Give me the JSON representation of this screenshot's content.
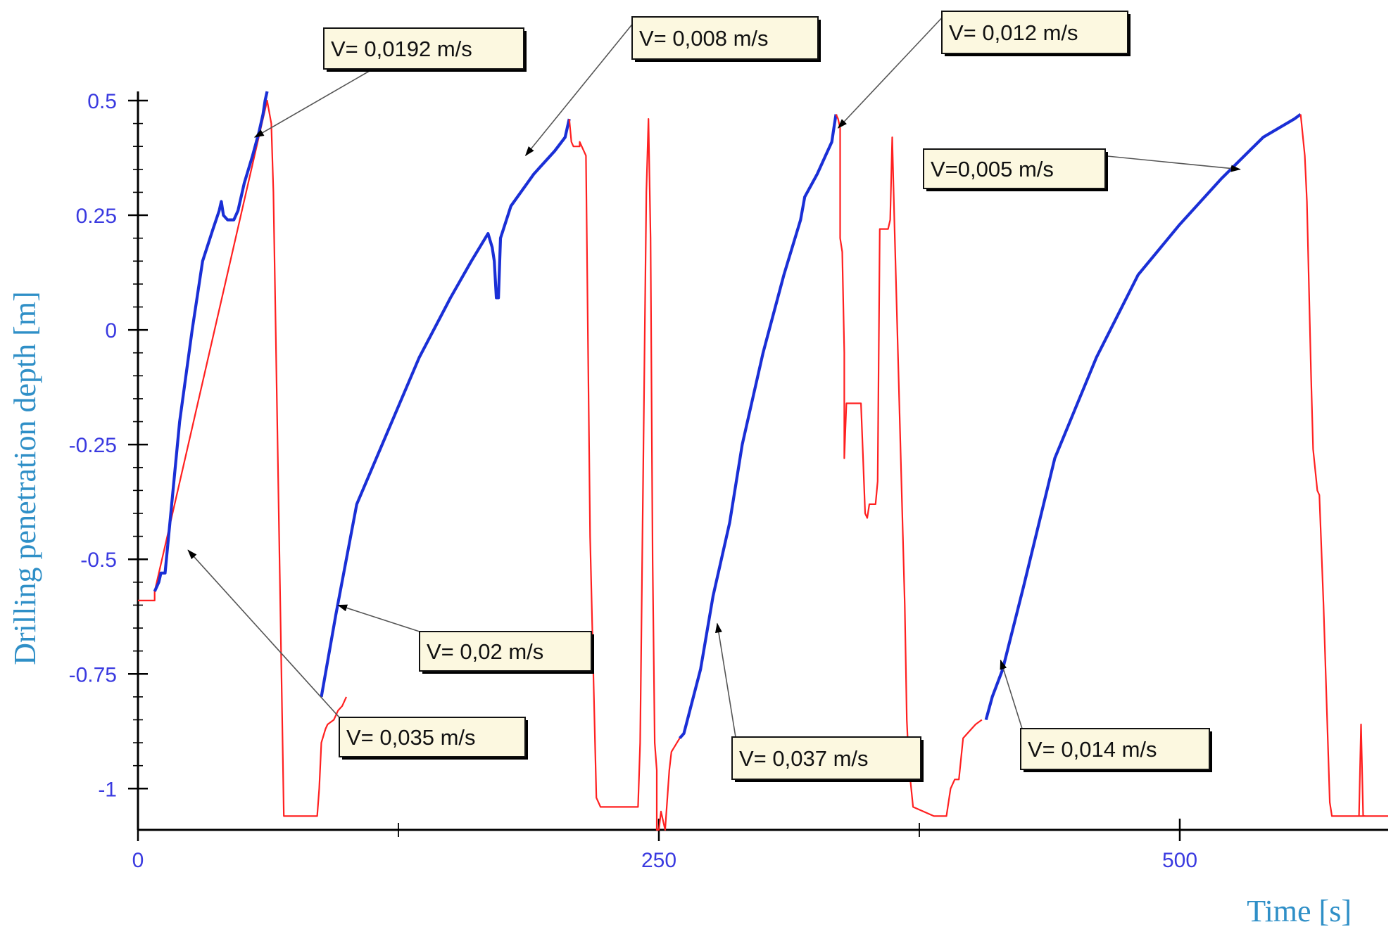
{
  "chart_data": {
    "type": "line",
    "xlabel": "Time [s]",
    "ylabel": "Drilling penetration depth [m]",
    "xlim": [
      0,
      600
    ],
    "ylim": [
      -1.09,
      0.5
    ],
    "x_ticks": [
      0,
      250,
      500
    ],
    "y_ticks": [
      0.5,
      0.25,
      0,
      -0.25,
      -0.5,
      -0.75,
      -1
    ],
    "y_tick_labels": [
      "0.5",
      "0.25",
      "0",
      "-0.25",
      "-0.5",
      "-0.75",
      "-1"
    ],
    "x_tick_labels": [
      "0",
      "250",
      "500"
    ],
    "colors": {
      "drilling": "#1a2fd6",
      "retract": "#ff2020",
      "ticks": "#3a3ae0",
      "titles": "#2f8fc7"
    },
    "series": [
      {
        "color": "#ff2020",
        "x": [
          0,
          8,
          8,
          62,
          64,
          65,
          70,
          81,
          86,
          87,
          88,
          90,
          91,
          94,
          96,
          98,
          100
        ],
        "y": [
          -0.59,
          -0.59,
          -0.57,
          0.5,
          0.45,
          0.3,
          -1.06,
          -1.06,
          -1.06,
          -1.0,
          -0.9,
          -0.87,
          -0.86,
          -0.85,
          -0.83,
          -0.82,
          -0.8
        ]
      },
      {
        "color": "#1a2fd6",
        "x": [
          8,
          10,
          11,
          13,
          20,
          26,
          31,
          36,
          39,
          40,
          41,
          43,
          44,
          45,
          46,
          48,
          51,
          55,
          58,
          60,
          61,
          62
        ],
        "y": [
          -0.57,
          -0.55,
          -0.53,
          -0.53,
          -0.2,
          0.0,
          0.15,
          0.22,
          0.26,
          0.28,
          0.25,
          0.24,
          0.24,
          0.24,
          0.24,
          0.26,
          0.32,
          0.38,
          0.43,
          0.47,
          0.5,
          0.52
        ]
      },
      {
        "color": "#1a2fd6",
        "x": [
          88,
          95,
          105,
          120,
          135,
          150,
          160,
          168,
          170,
          171,
          172,
          173,
          174,
          179,
          190,
          200,
          205,
          207
        ],
        "y": [
          -0.8,
          -0.62,
          -0.38,
          -0.22,
          -0.06,
          0.07,
          0.15,
          0.21,
          0.18,
          0.15,
          0.07,
          0.07,
          0.2,
          0.27,
          0.34,
          0.39,
          0.42,
          0.46
        ]
      },
      {
        "color": "#ff2020",
        "x": [
          207,
          208,
          209,
          212,
          212,
          215,
          217,
          219,
          220,
          222,
          236,
          240,
          241,
          242,
          244,
          245,
          246,
          247,
          248,
          249,
          249,
          250,
          251,
          253,
          255,
          256,
          260
        ],
        "y": [
          0.46,
          0.41,
          0.4,
          0.4,
          0.41,
          0.38,
          -0.45,
          -0.83,
          -1.02,
          -1.04,
          -1.04,
          -1.04,
          -0.9,
          -0.5,
          0.3,
          0.46,
          0.2,
          -0.5,
          -0.9,
          -0.96,
          -1.09,
          -1.09,
          -1.05,
          -1.09,
          -0.96,
          -0.92,
          -0.89
        ]
      },
      {
        "color": "#1a2fd6",
        "x": [
          260,
          262,
          270,
          276,
          280,
          284,
          290,
          300,
          310,
          318,
          320,
          326,
          330,
          333,
          334,
          335
        ],
        "y": [
          -0.89,
          -0.88,
          -0.74,
          -0.58,
          -0.5,
          -0.42,
          -0.25,
          -0.05,
          0.12,
          0.24,
          0.29,
          0.34,
          0.38,
          0.41,
          0.44,
          0.47
        ]
      },
      {
        "color": "#ff2020",
        "x": [
          335,
          336,
          337,
          337,
          338,
          339,
          339,
          340,
          341,
          341,
          342,
          345,
          347,
          348,
          349,
          350,
          351,
          354,
          355,
          356,
          357,
          358,
          360,
          361,
          362,
          363,
          368,
          369,
          370,
          372,
          382,
          385,
          386,
          388,
          390,
          392,
          394,
          396,
          400,
          402,
          405
        ],
        "y": [
          0.47,
          0.46,
          0.44,
          0.2,
          0.17,
          -0.05,
          -0.28,
          -0.16,
          -0.16,
          -0.16,
          -0.16,
          -0.16,
          -0.16,
          -0.28,
          -0.4,
          -0.41,
          -0.38,
          -0.38,
          -0.33,
          0.22,
          0.22,
          0.22,
          0.22,
          0.24,
          0.42,
          0.24,
          -0.6,
          -0.85,
          -0.95,
          -1.04,
          -1.06,
          -1.06,
          -1.06,
          -1.06,
          -1.0,
          -0.98,
          -0.98,
          -0.89,
          -0.87,
          -0.86,
          -0.85
        ]
      },
      {
        "color": "#1a2fd6",
        "x": [
          407,
          410,
          415,
          425,
          440,
          460,
          480,
          500,
          520,
          540,
          555,
          558
        ],
        "y": [
          -0.85,
          -0.8,
          -0.74,
          -0.56,
          -0.28,
          -0.06,
          0.12,
          0.23,
          0.33,
          0.42,
          0.46,
          0.47
        ]
      },
      {
        "color": "#ff2020",
        "x": [
          558,
          560,
          561,
          563,
          564,
          566,
          566,
          567,
          569,
          572,
          573,
          577,
          578,
          579,
          580,
          581,
          583,
          600
        ],
        "y": [
          0.47,
          0.38,
          0.28,
          -0.1,
          -0.26,
          -0.35,
          -0.35,
          -0.36,
          -0.6,
          -1.03,
          -1.06,
          -1.06,
          -1.06,
          -1.06,
          -1.06,
          -1.06,
          -1.06,
          -1.06
        ]
      },
      {
        "color": "#ff2020",
        "x": [
          586,
          587,
          588,
          589
        ],
        "y": [
          -1.06,
          -0.86,
          -1.06,
          -1.06
        ]
      }
    ],
    "annotations": [
      {
        "text": "V= 0,0192 m/s",
        "x": 56,
        "y": 0.42
      },
      {
        "text": "V= 0,008 m/s",
        "x": 186,
        "y": 0.38
      },
      {
        "text": "V= 0,012 m/s",
        "x": 336,
        "y": 0.44
      },
      {
        "text": "V=0,005 m/s",
        "x": 529,
        "y": 0.35
      },
      {
        "text": "V= 0,02 m/s",
        "x": 96,
        "y": -0.6
      },
      {
        "text": "V= 0,035 m/s",
        "x": 24,
        "y": -0.48
      },
      {
        "text": "V= 0,037 m/s",
        "x": 278,
        "y": -0.64
      },
      {
        "text": "V= 0,014 m/s",
        "x": 414,
        "y": -0.72
      }
    ]
  }
}
